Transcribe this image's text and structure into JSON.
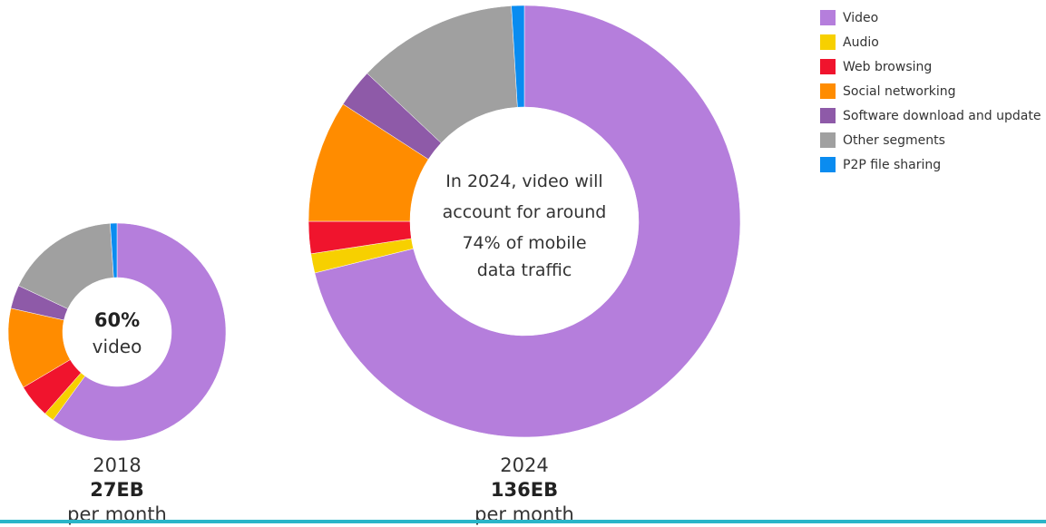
{
  "chart_data": {
    "type": "donut",
    "legend": [
      {
        "name": "Video",
        "color": "#b57edc"
      },
      {
        "name": "Audio",
        "color": "#f7d000"
      },
      {
        "name": "Web browsing",
        "color": "#f0142d"
      },
      {
        "name": "Social networking",
        "color": "#ff8c00"
      },
      {
        "name": "Software download and update",
        "color": "#8e5aa8"
      },
      {
        "name": "Other segments",
        "color": "#a0a0a0"
      },
      {
        "name": "P2P file sharing",
        "color": "#0a8cf0"
      }
    ],
    "charts": [
      {
        "year": "2018",
        "volume": "27EB",
        "unit_label": "per month",
        "center_lines": [
          "60%",
          "video"
        ],
        "values": [
          60,
          1.5,
          5,
          12,
          3.5,
          17,
          1
        ]
      },
      {
        "year": "2024",
        "volume": "136EB",
        "unit_label": "per month",
        "center_lines": [
          "In 2024, video will",
          "account for around",
          "74% of mobile",
          "data traffic"
        ],
        "values": [
          74,
          1.5,
          2.5,
          9.5,
          3,
          12.5,
          1
        ]
      }
    ]
  },
  "colors": {
    "accent_bar": "#2ab5c8"
  }
}
